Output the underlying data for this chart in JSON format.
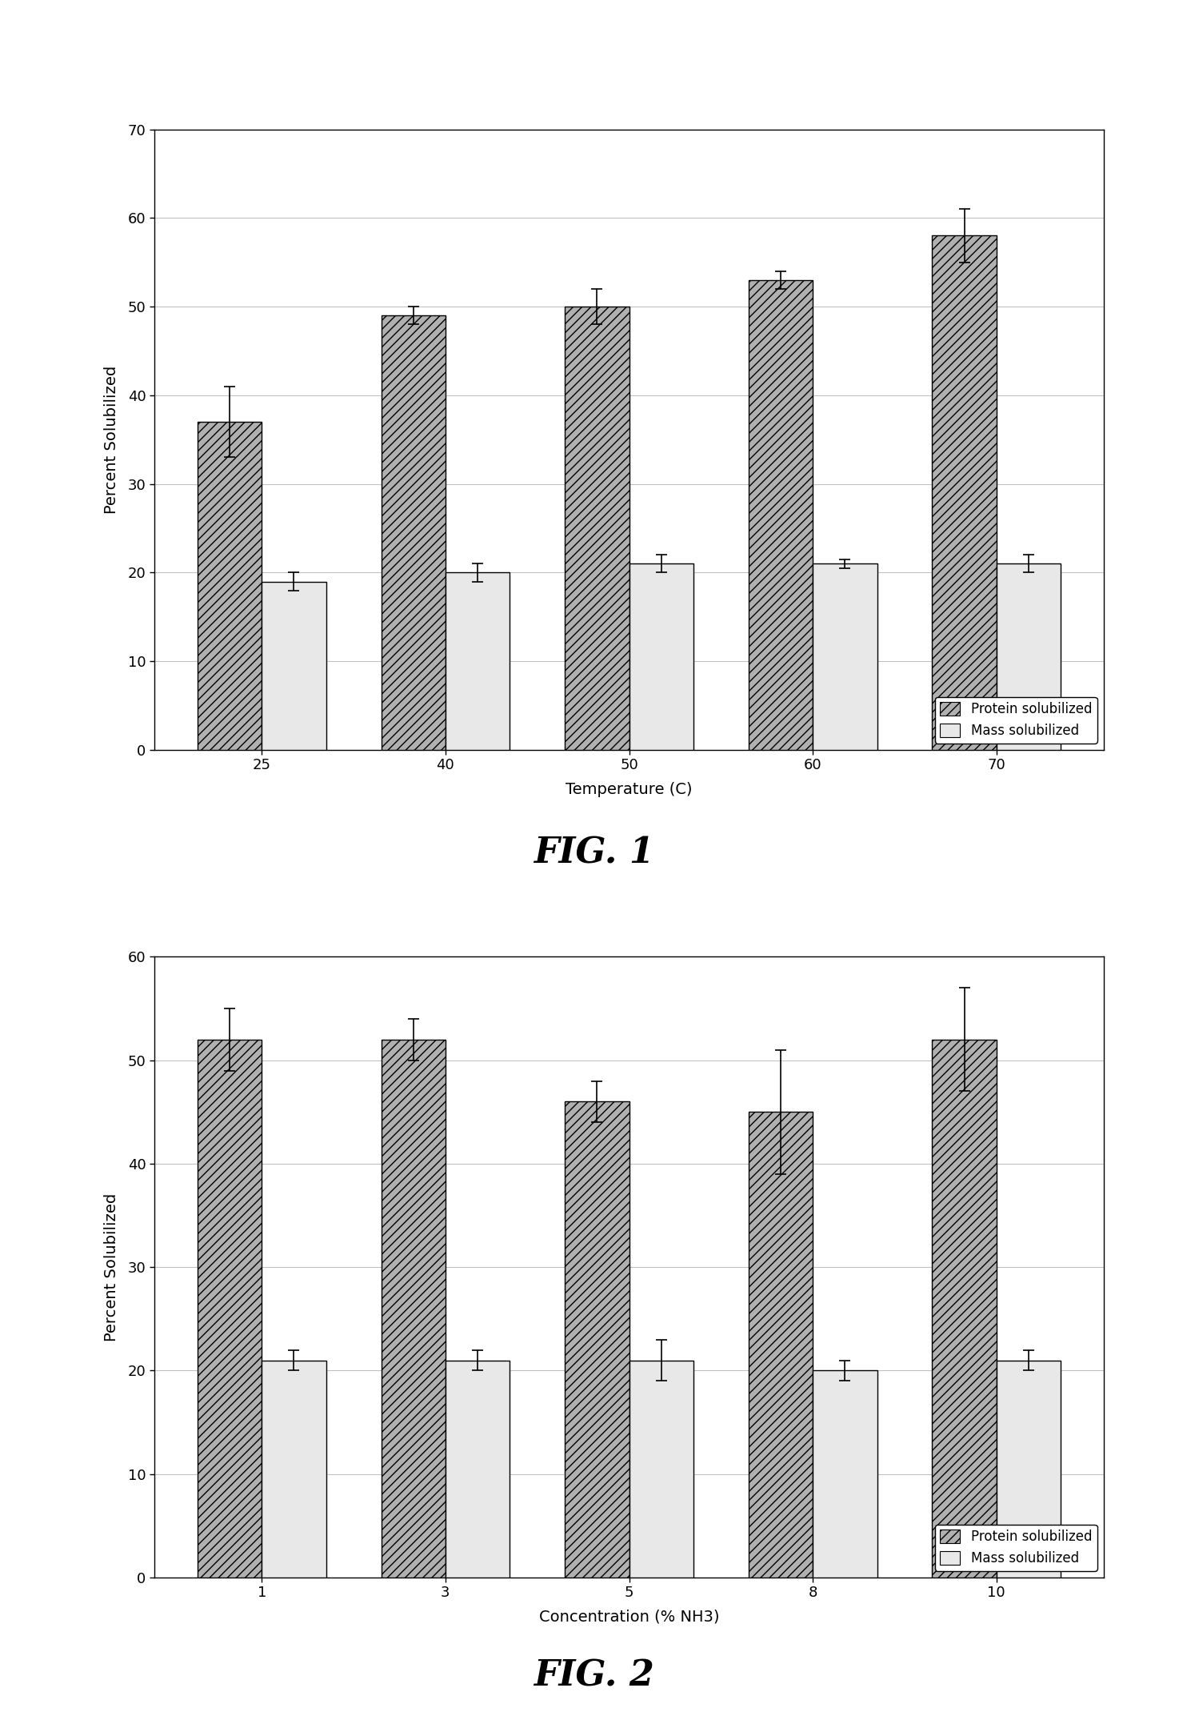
{
  "fig1": {
    "title": "FIG. 1",
    "xlabel": "Temperature (C)",
    "ylabel": "Percent Solubilized",
    "x_labels": [
      "25",
      "40",
      "50",
      "60",
      "70"
    ],
    "protein_values": [
      37,
      49,
      50,
      53,
      58
    ],
    "mass_values": [
      19,
      20,
      21,
      21,
      21
    ],
    "protein_errors": [
      4,
      1,
      2,
      1,
      3
    ],
    "mass_errors": [
      1,
      1,
      1,
      0.5,
      1
    ],
    "ylim": [
      0,
      70
    ],
    "yticks": [
      0,
      10,
      20,
      30,
      40,
      50,
      60,
      70
    ]
  },
  "fig2": {
    "title": "FIG. 2",
    "xlabel": "Concentration (% NH3)",
    "ylabel": "Percent Solubilized",
    "x_labels": [
      "1",
      "3",
      "5",
      "8",
      "10"
    ],
    "protein_values": [
      52,
      52,
      46,
      45,
      52
    ],
    "mass_values": [
      21,
      21,
      21,
      20,
      21
    ],
    "protein_errors": [
      3,
      2,
      2,
      6,
      5
    ],
    "mass_errors": [
      1,
      1,
      2,
      1,
      1
    ],
    "ylim": [
      0,
      60
    ],
    "yticks": [
      0,
      10,
      20,
      30,
      40,
      50,
      60
    ]
  },
  "protein_color": "#b0b0b0",
  "mass_color": "#e8e8e8",
  "protein_hatch": "///",
  "mass_hatch": "",
  "legend_protein": "Protein solubilized",
  "legend_mass": "Mass solubilized",
  "bar_width": 0.35,
  "bg_color": "#ffffff",
  "label_fontsize": 14,
  "tick_fontsize": 13,
  "legend_fontsize": 12,
  "fig_title_fontsize": 32
}
